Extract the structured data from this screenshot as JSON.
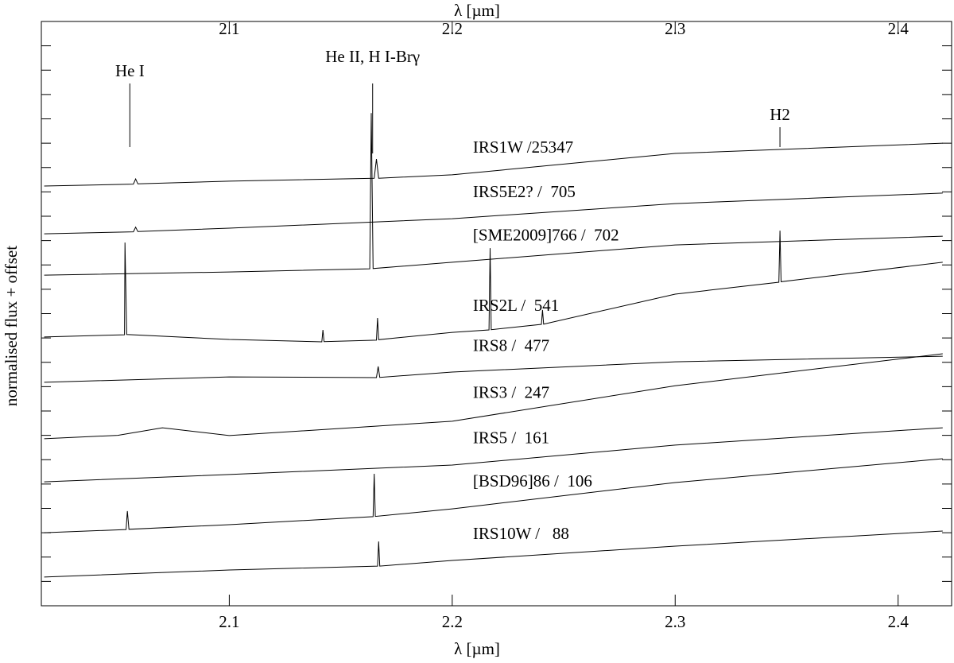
{
  "chart_data": {
    "type": "line",
    "xlabel": "λ [µm]",
    "ylabel": "normalised flux + offset",
    "xlim": [
      2.0157,
      2.424
    ],
    "xticks": [
      2.1,
      2.2,
      2.3,
      2.4
    ],
    "ylim": [
      0,
      24
    ],
    "yticks": [
      1,
      2,
      3,
      4,
      5,
      6,
      7,
      8,
      9,
      10,
      11,
      12,
      13,
      14,
      15,
      16,
      17,
      18,
      19,
      20,
      21,
      22,
      23
    ],
    "ytick_labels": false,
    "color": "#000000",
    "series": [
      {
        "name": "IRS1W /25347",
        "x": [
          2.017,
          2.057,
          2.058,
          2.059,
          2.1,
          2.165,
          2.166,
          2.167,
          2.2,
          2.3,
          2.42
        ],
        "values": [
          17.24,
          17.32,
          17.53,
          17.33,
          17.44,
          17.56,
          18.35,
          17.56,
          17.7,
          18.58,
          19.0
        ]
      },
      {
        "name": "IRS5E2? /  705",
        "x": [
          2.017,
          2.057,
          2.058,
          2.059,
          2.1,
          2.2,
          2.3,
          2.42
        ],
        "values": [
          15.28,
          15.36,
          15.55,
          15.37,
          15.51,
          15.9,
          16.52,
          16.95
        ]
      },
      {
        "name": "[SME2009]766 /  702",
        "x": [
          2.017,
          2.1,
          2.163,
          2.1637,
          2.1645,
          2.2,
          2.3,
          2.42
        ],
        "values": [
          13.58,
          13.71,
          13.84,
          20.24,
          13.85,
          14.11,
          14.82,
          15.18
        ]
      },
      {
        "name": "IRS2L /  541",
        "x": [
          2.017,
          2.053,
          2.0532,
          2.054,
          2.1,
          2.1415,
          2.142,
          2.1425,
          2.166,
          2.1665,
          2.167,
          2.2,
          2.2165,
          2.217,
          2.2175,
          2.24,
          2.2405,
          2.241,
          2.3,
          2.3465,
          2.347,
          2.3475,
          2.42
        ],
        "values": [
          11.04,
          11.13,
          14.92,
          11.14,
          10.94,
          10.84,
          11.33,
          10.85,
          10.91,
          11.82,
          10.93,
          11.23,
          11.33,
          14.69,
          11.34,
          11.56,
          12.15,
          11.57,
          12.8,
          13.29,
          15.41,
          13.31,
          14.11
        ]
      },
      {
        "name": "IRS8 /  477",
        "x": [
          2.017,
          2.1,
          2.166,
          2.1668,
          2.1675,
          2.2,
          2.3,
          2.42
        ],
        "values": [
          9.18,
          9.4,
          9.37,
          9.83,
          9.38,
          9.6,
          10.02,
          10.25
        ]
      },
      {
        "name": "IRS3 /  247",
        "x": [
          2.017,
          2.05,
          2.07,
          2.1,
          2.2,
          2.3,
          2.42
        ],
        "values": [
          6.86,
          7.0,
          7.31,
          6.99,
          7.58,
          9.04,
          10.35
        ]
      },
      {
        "name": "IRS5 /  161",
        "x": [
          2.017,
          2.1,
          2.2,
          2.3,
          2.42
        ],
        "values": [
          5.09,
          5.39,
          5.78,
          6.6,
          7.31
        ]
      },
      {
        "name": "[BSD96]86 /  106",
        "x": [
          2.017,
          2.0537,
          2.0543,
          2.055,
          2.1,
          2.1645,
          2.165,
          2.1655,
          2.2,
          2.3,
          2.42
        ],
        "values": [
          3.0,
          3.13,
          3.89,
          3.14,
          3.33,
          3.66,
          5.42,
          3.67,
          3.98,
          5.06,
          6.04
        ]
      },
      {
        "name": "IRS10W /   88",
        "x": [
          2.017,
          2.1,
          2.1665,
          2.167,
          2.1675,
          2.2,
          2.3,
          2.42
        ],
        "values": [
          1.18,
          1.47,
          1.63,
          2.64,
          1.63,
          1.86,
          2.45,
          3.07
        ]
      }
    ],
    "label_x": 2.2093,
    "lines": [
      {
        "label": "He I",
        "x": 2.0554
      },
      {
        "label": "He II, H I-Brγ",
        "x": 2.1643
      },
      {
        "label": "H2",
        "x": 2.347
      }
    ]
  }
}
